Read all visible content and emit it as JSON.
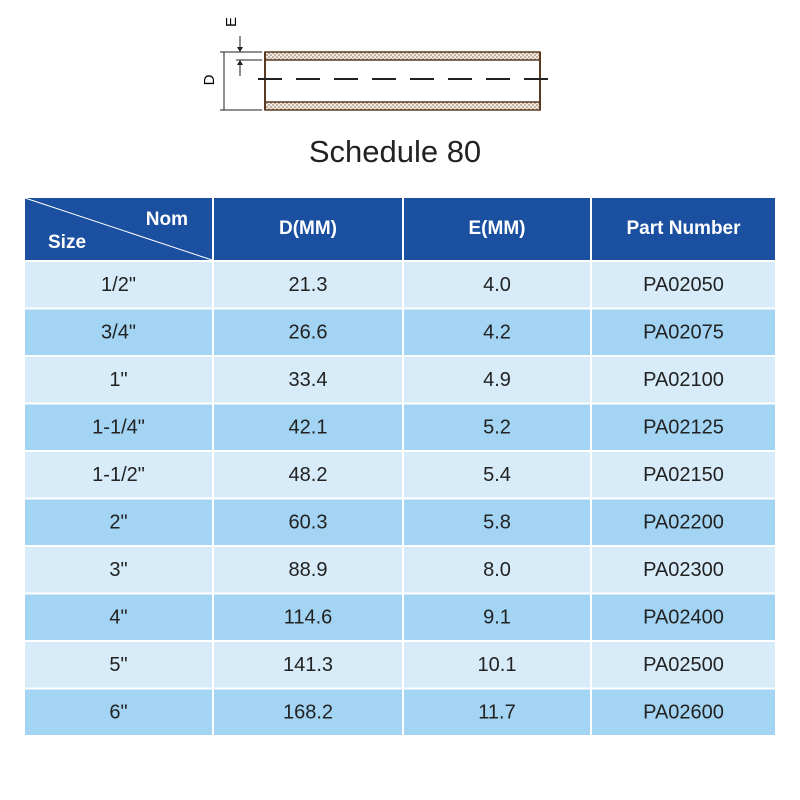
{
  "diagram": {
    "e_label": "E",
    "d_label": "D"
  },
  "title": "Schedule 80",
  "table": {
    "header": {
      "nom": "Nom",
      "size": "Size",
      "columns": [
        "D(MM)",
        "E(MM)",
        "Part Number"
      ]
    },
    "rows": [
      [
        "1/2\"",
        "21.3",
        "4.0",
        "PA02050"
      ],
      [
        "3/4\"",
        "26.6",
        "4.2",
        "PA02075"
      ],
      [
        "1\"",
        "33.4",
        "4.9",
        "PA02100"
      ],
      [
        "1-1/4\"",
        "42.1",
        "5.2",
        "PA02125"
      ],
      [
        "1-1/2\"",
        "48.2",
        "5.4",
        "PA02150"
      ],
      [
        "2\"",
        "60.3",
        "5.8",
        "PA02200"
      ],
      [
        "3\"",
        "88.9",
        "8.0",
        "PA02300"
      ],
      [
        "4\"",
        "114.6",
        "9.1",
        "PA02400"
      ],
      [
        "5\"",
        "141.3",
        "10.1",
        "PA02500"
      ],
      [
        "6\"",
        "168.2",
        "11.7",
        "PA02600"
      ]
    ]
  }
}
